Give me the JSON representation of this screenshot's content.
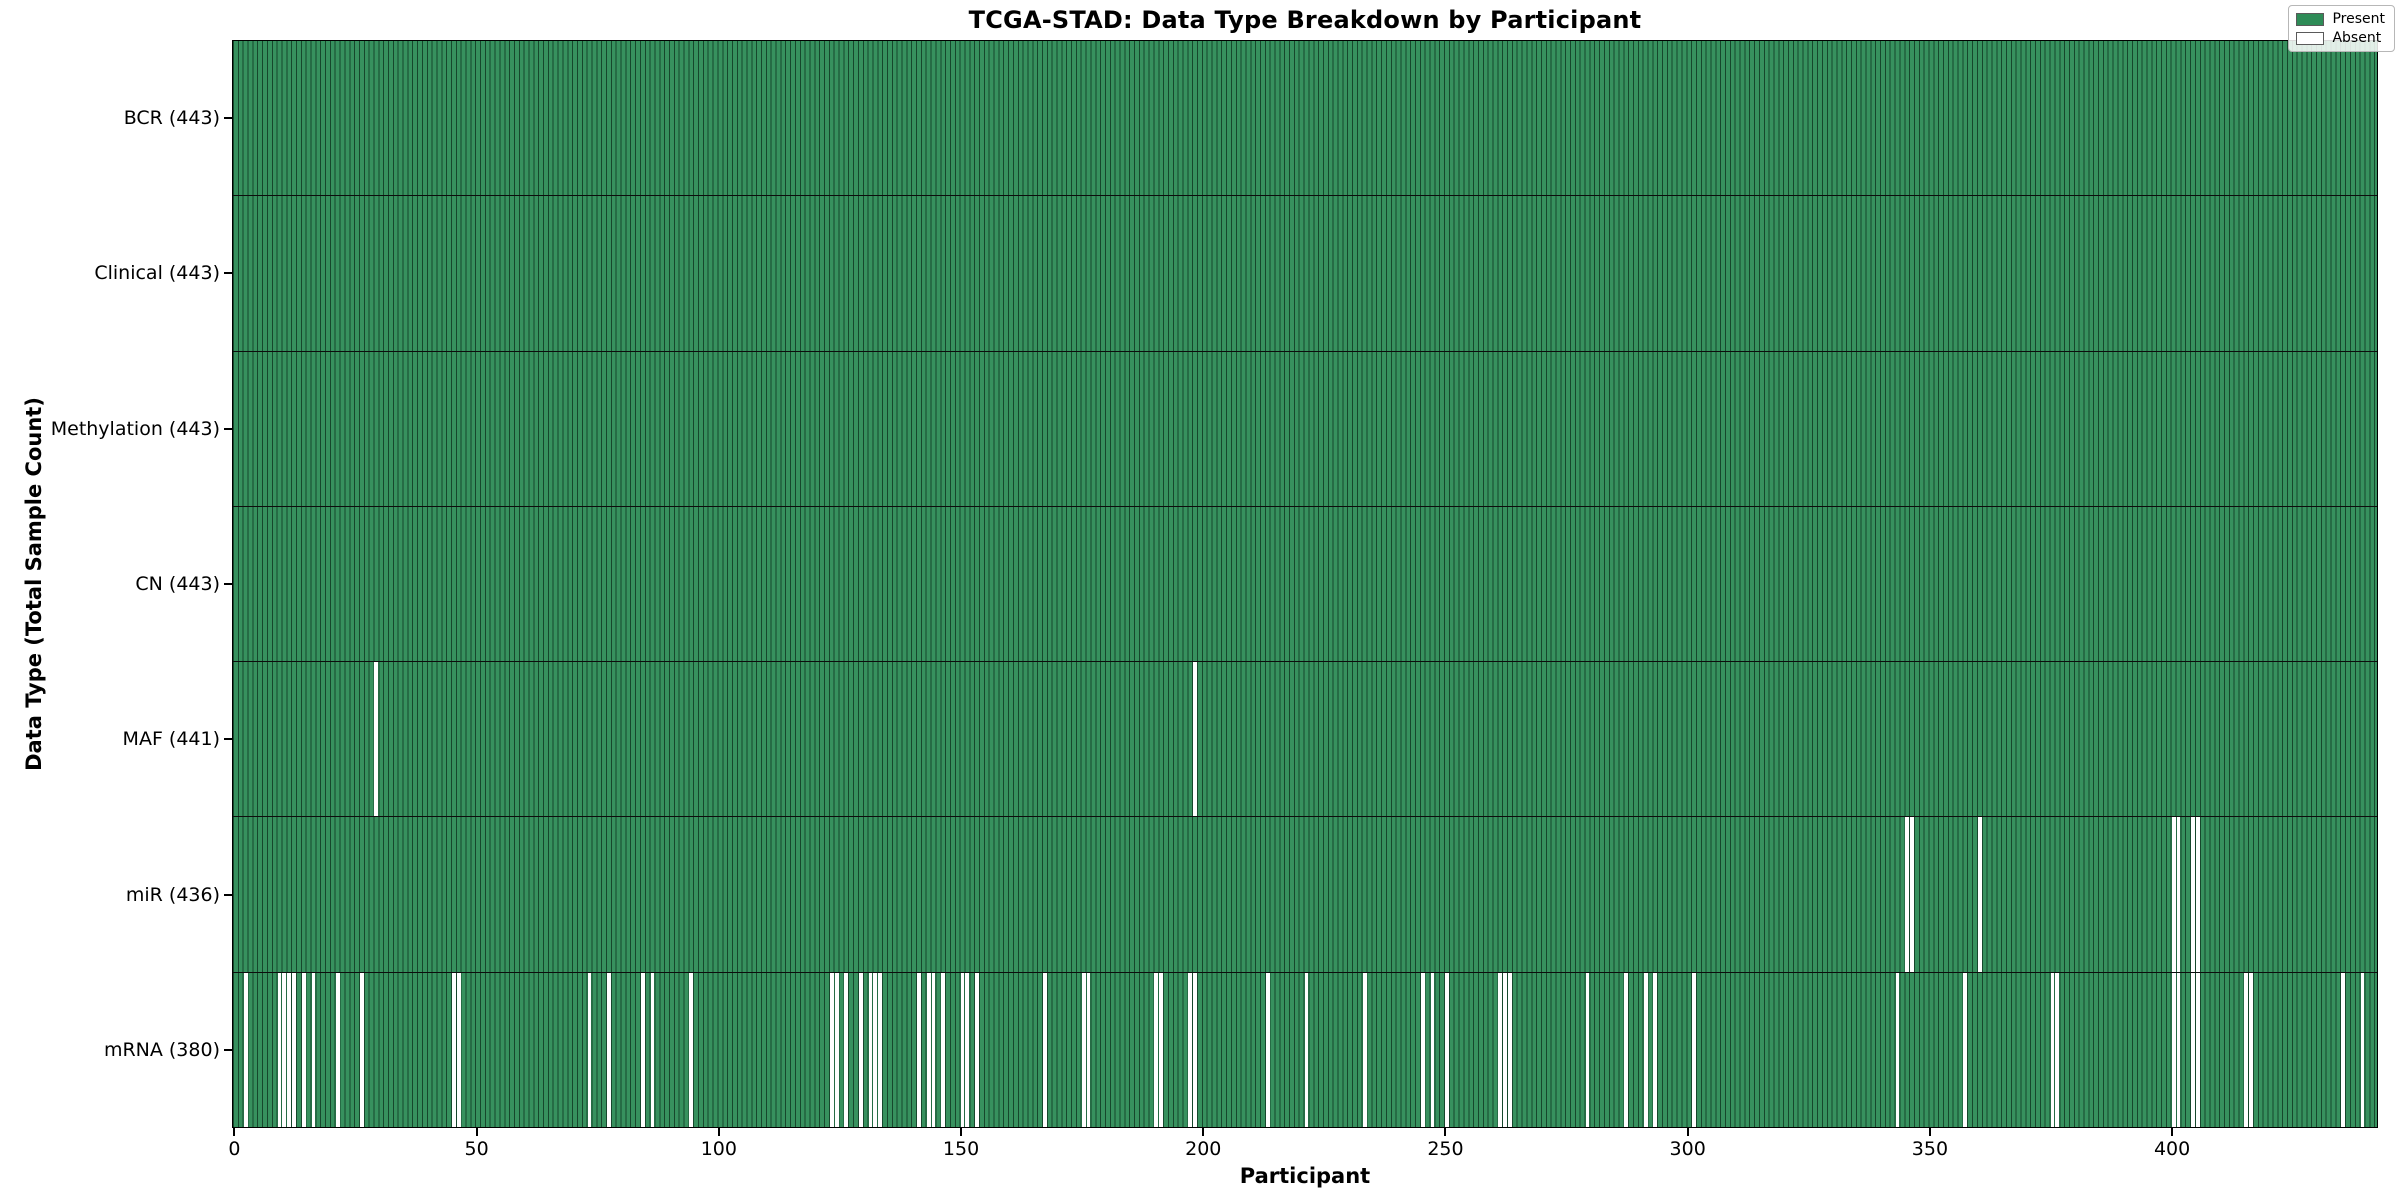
{
  "title": "TCGA-STAD: Data Type Breakdown by Participant",
  "axes": {
    "x_label": "Participant",
    "y_label": "Data Type (Total Sample Count)",
    "x_ticks": [
      0,
      50,
      100,
      150,
      200,
      250,
      300,
      350,
      400
    ]
  },
  "legend": {
    "present_label": "Present",
    "absent_label": "Absent"
  },
  "colors": {
    "present": "#2E8B57",
    "present_fill": "#37915e",
    "bar_edge": "#16472c",
    "absent": "#ffffff",
    "axis": "#000000"
  },
  "chart_data": {
    "type": "heatmap",
    "n_participants": 443,
    "legend_position": "upper right",
    "rows": [
      {
        "label": "BCR",
        "total": 443,
        "display": "BCR (443)",
        "absent": []
      },
      {
        "label": "Clinical",
        "total": 443,
        "display": "Clinical (443)",
        "absent": []
      },
      {
        "label": "Methylation",
        "total": 443,
        "display": "Methylation (443)",
        "absent": []
      },
      {
        "label": "CN",
        "total": 443,
        "display": "CN (443)",
        "absent": []
      },
      {
        "label": "MAF",
        "total": 441,
        "display": "MAF (441)",
        "absent": [
          29,
          198
        ]
      },
      {
        "label": "miR",
        "total": 436,
        "display": "miR (436)",
        "absent": [
          345,
          346,
          360,
          400,
          401,
          404,
          405
        ]
      },
      {
        "label": "mRNA",
        "total": 380,
        "display": "mRNA (380)",
        "absent": [
          2,
          9,
          10,
          11,
          12,
          14,
          16,
          21,
          26,
          45,
          46,
          73,
          77,
          84,
          86,
          94,
          123,
          124,
          126,
          129,
          131,
          132,
          133,
          141,
          143,
          144,
          146,
          150,
          151,
          153,
          167,
          175,
          176,
          190,
          191,
          197,
          198,
          213,
          221,
          233,
          245,
          247,
          250,
          261,
          262,
          263,
          279,
          287,
          291,
          293,
          301,
          343,
          357,
          375,
          376,
          400,
          401,
          404,
          405,
          415,
          416,
          435,
          439
        ]
      }
    ]
  }
}
